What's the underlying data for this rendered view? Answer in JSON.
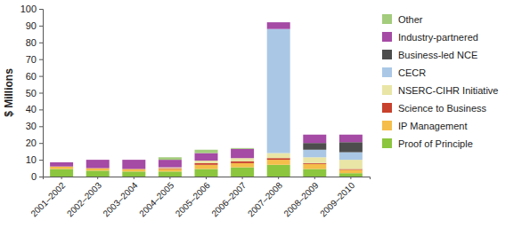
{
  "chart_data": {
    "type": "bar",
    "stacked": true,
    "legend": "right",
    "grid": false,
    "y_label": "$ Millions",
    "categories": [
      "2001–2002",
      "2002–2003",
      "2003–2004",
      "2004–2005",
      "2005–2006",
      "2006–2007",
      "2007–2008",
      "2008–2009",
      "2009–2010"
    ],
    "ylim": [
      0,
      100
    ],
    "yticks": [
      0,
      10,
      20,
      30,
      40,
      50,
      60,
      70,
      80,
      90,
      100
    ],
    "series": [
      {
        "name": "Proof of Principle",
        "color": "#8cc63e",
        "values": [
          4.5,
          3.5,
          3,
          3,
          4.5,
          5.5,
          7,
          4.5,
          2
        ]
      },
      {
        "name": "IP Management",
        "color": "#f5bd4a",
        "values": [
          1.5,
          1.5,
          1.5,
          1.5,
          2.5,
          2.5,
          3,
          3,
          2
        ]
      },
      {
        "name": "Science to Business",
        "color": "#c8412c",
        "values": [
          0,
          0,
          0,
          0.5,
          1,
          1,
          1,
          0.5,
          0.5
        ]
      },
      {
        "name": "NSERC-CIHR Initiative",
        "color": "#e9e5a6",
        "values": [
          0,
          0,
          0,
          0.5,
          1.5,
          2,
          3,
          3.5,
          5.5
        ]
      },
      {
        "name": "CECR",
        "color": "#aac8e6",
        "values": [
          0,
          0,
          0,
          0,
          0,
          0,
          74,
          4.5,
          4.5
        ]
      },
      {
        "name": "Business-led NCE",
        "color": "#4d4d4d",
        "values": [
          0,
          0,
          0,
          0,
          0,
          0,
          0,
          4,
          6
        ]
      },
      {
        "name": "Industry-partnered",
        "color": "#a54aa5",
        "values": [
          2.5,
          5,
          5.5,
          4.5,
          4.5,
          5.5,
          4,
          5,
          4.5
        ]
      },
      {
        "name": "Other",
        "color": "#a3cc7c",
        "values": [
          0,
          0,
          0,
          1.5,
          2,
          0.5,
          0,
          0,
          0
        ]
      }
    ]
  }
}
